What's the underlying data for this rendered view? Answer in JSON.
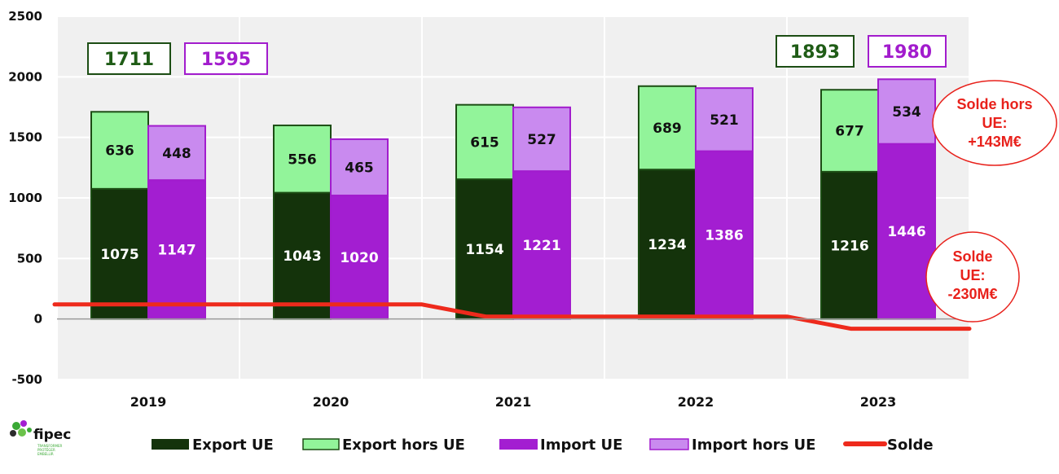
{
  "chart_data": {
    "type": "bar",
    "subtype": "stacked-grouped-bar-with-line",
    "categories": [
      "2019",
      "2020",
      "2021",
      "2022",
      "2023"
    ],
    "ylim": [
      -500,
      2500
    ],
    "yticks": [
      "2500",
      "2000",
      "1500",
      "1000",
      "500",
      "0",
      "-500"
    ],
    "ytick_values": [
      2500,
      2000,
      1500,
      1000,
      500,
      0,
      -500
    ],
    "series": [
      {
        "name": "Export UE",
        "stack": "export",
        "color": "#14330b",
        "label_color": "#ffffff",
        "values": [
          1075,
          1043,
          1154,
          1234,
          1216
        ]
      },
      {
        "name": "Export hors UE",
        "stack": "export",
        "color": "#92f49a",
        "label_color": "#111111",
        "values": [
          636,
          556,
          615,
          689,
          677
        ]
      },
      {
        "name": "Import UE",
        "stack": "import",
        "color": "#a31ed1",
        "label_color": "#ffffff",
        "values": [
          1147,
          1020,
          1221,
          1386,
          1446
        ]
      },
      {
        "name": "Import hors UE",
        "stack": "import",
        "color": "#c98aef",
        "label_color": "#111111",
        "values": [
          448,
          465,
          527,
          521,
          534
        ]
      }
    ],
    "line": {
      "name": "Solde",
      "color": "#ee2a1c",
      "points": [
        {
          "x": 0,
          "y": 120
        },
        {
          "x": 1,
          "y": 120
        },
        {
          "x": 1.5,
          "y": 120
        },
        {
          "x": 1.85,
          "y": 20
        },
        {
          "x": 3.5,
          "y": 20
        },
        {
          "x": 3.85,
          "y": -80
        },
        {
          "x": 4.5,
          "y": -80
        }
      ]
    },
    "totals": [
      {
        "category": "2019",
        "export": "1711",
        "import": "1595"
      },
      {
        "category": "2023",
        "export": "1893",
        "import": "1980"
      }
    ],
    "annotations": [
      {
        "lines": [
          "Solde hors",
          "UE:",
          "+143M€"
        ]
      },
      {
        "lines": [
          "Solde",
          "UE:",
          "-230M€"
        ]
      }
    ],
    "legend": {
      "position": "bottom",
      "items": [
        {
          "label": "Export UE",
          "color": "#14330b",
          "kind": "box"
        },
        {
          "label": "Export hors UE",
          "color": "#92f49a",
          "kind": "box"
        },
        {
          "label": "Import UE",
          "color": "#a31ed1",
          "kind": "box"
        },
        {
          "label": "Import hors UE",
          "color": "#c98aef",
          "kind": "box"
        },
        {
          "label": "Solde",
          "color": "#ee2a1c",
          "kind": "line"
        }
      ]
    }
  },
  "colors": {
    "export_border": "#1c4d14",
    "import_border": "#a21ccd",
    "export_total_text": "#1f5c16",
    "import_total_text": "#a21ccd",
    "grid": "#e6e6e6",
    "gridline_vertical": "#ffffff",
    "plot_bg": "#f0f0f0",
    "annotation": "#e8211b"
  },
  "logo": {
    "name": "fipec",
    "tagline": [
      "TRANSFORMER",
      "PROTÉGER",
      "EMBELLIR"
    ]
  }
}
